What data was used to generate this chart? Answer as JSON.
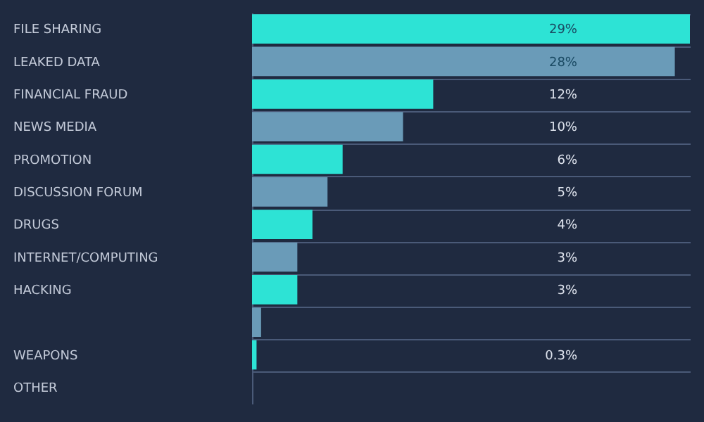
{
  "chart_data": {
    "type": "bar",
    "orientation": "horizontal",
    "categories": [
      "FILE SHARING",
      "LEAKED DATA",
      "FINANCIAL FRAUD",
      "NEWS MEDIA",
      "PROMOTION",
      "DISCUSSION FORUM",
      "DRUGS",
      "INTERNET/COMPUTING",
      "HACKING",
      null,
      "WEAPONS",
      "OTHER"
    ],
    "values": [
      29,
      28,
      12,
      10,
      6,
      5,
      4,
      3,
      3,
      0.6,
      0.3,
      null
    ],
    "colors": [
      "#2de3d5",
      "#6a9bb8",
      "#2de3d5",
      "#6a9bb8",
      "#2de3d5",
      "#6a9bb8",
      "#2de3d5",
      "#6a9bb8",
      "#2de3d5",
      "#6a9bb8",
      "#2de3d5",
      "#6a9bb8"
    ],
    "value_labels": [
      "29%",
      "28%",
      "12%",
      "10%",
      "6%",
      "5%",
      "4%",
      "3%",
      "3%",
      null,
      "0.3%",
      null
    ],
    "grid": "y"
  }
}
